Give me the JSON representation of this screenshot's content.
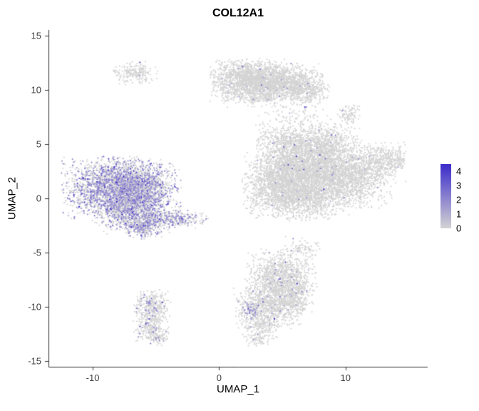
{
  "title": "COL12A1",
  "axes": {
    "x": {
      "label": "UMAP_1",
      "ticks": [
        -10,
        0,
        10
      ]
    },
    "y": {
      "label": "UMAP_2",
      "ticks": [
        -15,
        -10,
        -5,
        0,
        5,
        10,
        15
      ]
    }
  },
  "legend": {
    "ticks": [
      4,
      3,
      2,
      1,
      0
    ],
    "low_color": "#d3d3d3",
    "high_color": "#3b2bca",
    "value_max": 4.5
  },
  "chart_data": {
    "type": "scatter",
    "title": "COL12A1",
    "xlabel": "UMAP_1",
    "ylabel": "UMAP_2",
    "xlim": [
      -13.5,
      16.5
    ],
    "ylim": [
      -15.5,
      15.5
    ],
    "grid": false,
    "legend_position": "right",
    "color_scale": {
      "low": "#d3d3d3",
      "high": "#3b2bca",
      "range": [
        0,
        4
      ]
    },
    "clusters": [
      {
        "name": "left-main-expressing-cluster",
        "expr_fraction": 0.38,
        "blobs": [
          {
            "cx": -8.3,
            "cy": 1.0,
            "sx": 1.9,
            "sy": 1.3,
            "n": 2100
          },
          {
            "cx": -6.3,
            "cy": 0.9,
            "sx": 1.5,
            "sy": 1.2,
            "n": 1400
          },
          {
            "cx": -7.0,
            "cy": -1.3,
            "sx": 1.4,
            "sy": 0.9,
            "n": 900
          },
          {
            "cx": -6.0,
            "cy": -2.7,
            "sx": 0.7,
            "sy": 0.5,
            "n": 260
          },
          {
            "cx": -3.7,
            "cy": -1.9,
            "sx": 1.3,
            "sy": 0.4,
            "n": 340
          }
        ]
      },
      {
        "name": "top-left-small-blob",
        "expr_fraction": 0.02,
        "blobs": [
          {
            "cx": -6.6,
            "cy": 11.5,
            "sx": 0.8,
            "sy": 0.5,
            "n": 220
          }
        ]
      },
      {
        "name": "top-cluster",
        "expr_fraction": 0.012,
        "blobs": [
          {
            "cx": 2.3,
            "cy": 10.9,
            "sx": 1.4,
            "sy": 0.9,
            "n": 1400
          },
          {
            "cx": 5.0,
            "cy": 10.7,
            "sx": 1.5,
            "sy": 0.8,
            "n": 1100
          },
          {
            "cx": 7.0,
            "cy": 9.9,
            "sx": 0.8,
            "sy": 0.7,
            "n": 280
          },
          {
            "cx": 3.8,
            "cy": 9.4,
            "sx": 1.8,
            "sy": 0.5,
            "n": 200
          }
        ]
      },
      {
        "name": "right-main-cluster",
        "expr_fraction": 0.008,
        "blobs": [
          {
            "cx": 7.2,
            "cy": 3.0,
            "sx": 2.0,
            "sy": 1.5,
            "n": 2600
          },
          {
            "cx": 4.8,
            "cy": 1.2,
            "sx": 1.4,
            "sy": 1.4,
            "n": 1300
          },
          {
            "cx": 7.0,
            "cy": 0.1,
            "sx": 1.6,
            "sy": 1.0,
            "n": 900
          },
          {
            "cx": 10.4,
            "cy": 1.8,
            "sx": 1.5,
            "sy": 1.3,
            "n": 1100
          },
          {
            "cx": 12.6,
            "cy": 3.2,
            "sx": 1.0,
            "sy": 0.9,
            "n": 380
          },
          {
            "cx": 6.0,
            "cy": 5.3,
            "sx": 1.5,
            "sy": 0.9,
            "n": 520
          },
          {
            "cx": 9.0,
            "cy": 5.2,
            "sx": 1.0,
            "sy": 0.8,
            "n": 260
          },
          {
            "cx": 5.6,
            "cy": 7.6,
            "sx": 1.4,
            "sy": 0.8,
            "n": 110
          }
        ]
      },
      {
        "name": "right-edge-blob",
        "expr_fraction": 0.01,
        "blobs": [
          {
            "cx": 13.9,
            "cy": 3.6,
            "sx": 0.5,
            "sy": 0.5,
            "n": 130
          }
        ]
      },
      {
        "name": "upper-right-small-blob",
        "expr_fraction": 0.01,
        "blobs": [
          {
            "cx": 10.3,
            "cy": 7.7,
            "sx": 0.45,
            "sy": 0.4,
            "n": 90
          }
        ]
      },
      {
        "name": "bottom-middle-cluster",
        "expr_fraction": 0.02,
        "blobs": [
          {
            "cx": 4.9,
            "cy": -7.3,
            "sx": 1.3,
            "sy": 1.2,
            "n": 1100
          },
          {
            "cx": 4.0,
            "cy": -9.8,
            "sx": 1.3,
            "sy": 1.0,
            "n": 800
          },
          {
            "cx": 5.8,
            "cy": -9.3,
            "sx": 0.8,
            "sy": 0.8,
            "n": 300
          },
          {
            "cx": 3.3,
            "cy": -11.7,
            "sx": 0.7,
            "sy": 0.6,
            "n": 200
          },
          {
            "cx": 3.0,
            "cy": -13.0,
            "sx": 0.4,
            "sy": 0.3,
            "n": 60
          },
          {
            "cx": 6.6,
            "cy": -4.6,
            "sx": 0.7,
            "sy": 0.5,
            "n": 80
          }
        ]
      },
      {
        "name": "bottom-middle-expressing-spot",
        "expr_fraction": 0.55,
        "blobs": [
          {
            "cx": 2.6,
            "cy": -10.4,
            "sx": 0.35,
            "sy": 0.5,
            "n": 80
          }
        ]
      },
      {
        "name": "bottom-left-cluster",
        "expr_fraction": 0.1,
        "blobs": [
          {
            "cx": -5.3,
            "cy": -9.9,
            "sx": 0.7,
            "sy": 0.7,
            "n": 320
          },
          {
            "cx": -5.4,
            "cy": -11.8,
            "sx": 0.65,
            "sy": 0.8,
            "n": 260
          },
          {
            "cx": -4.8,
            "cy": -12.9,
            "sx": 0.4,
            "sy": 0.3,
            "n": 60
          }
        ]
      }
    ]
  }
}
